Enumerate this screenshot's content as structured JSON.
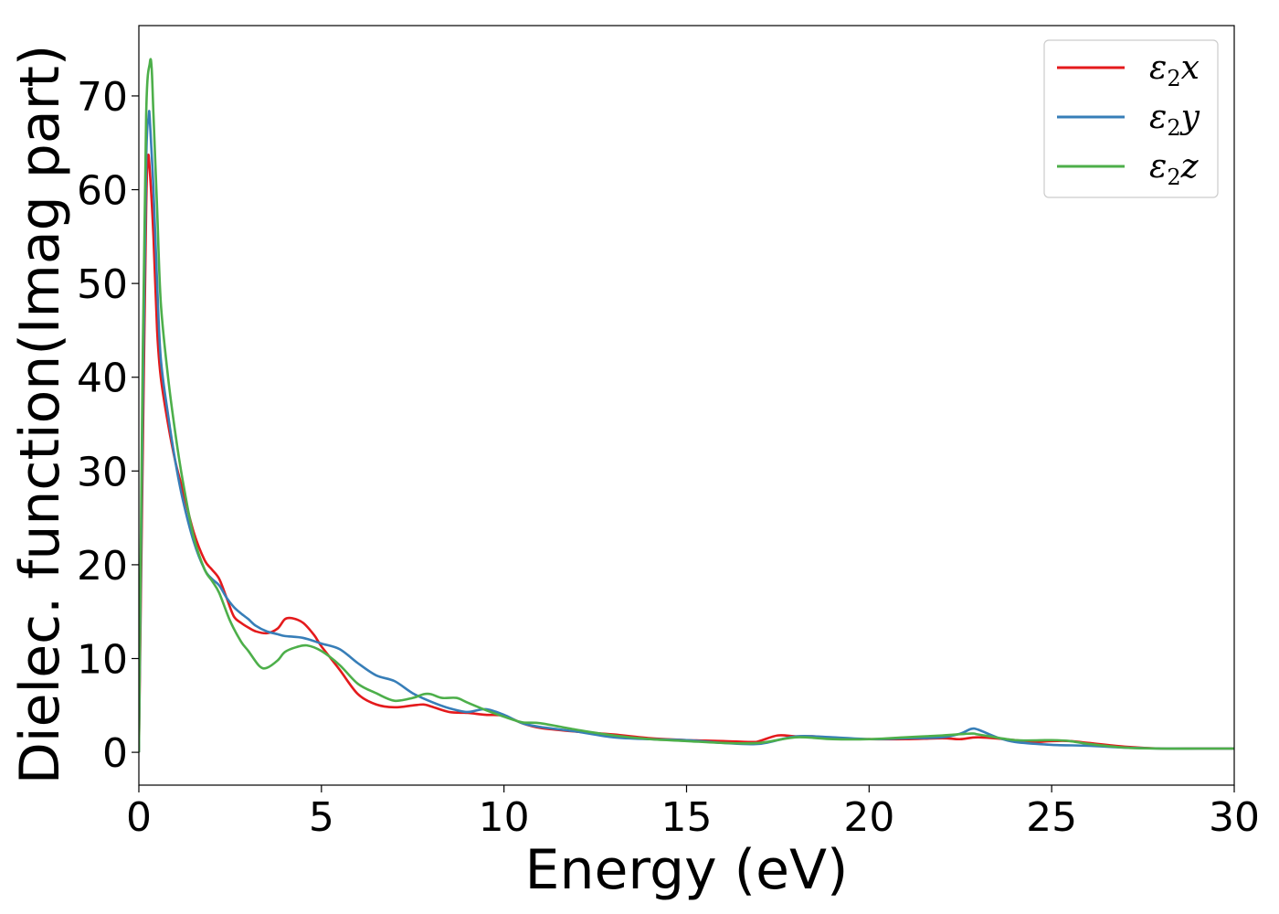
{
  "chart_data": {
    "type": "line",
    "title": "",
    "xlabel": "Energy (eV)",
    "ylabel": "Dielec. function(Imag part)",
    "xlim": [
      0,
      30
    ],
    "ylim": [
      -3.5,
      77.5
    ],
    "xticks": [
      0,
      5,
      10,
      15,
      20,
      25,
      30
    ],
    "yticks": [
      0,
      10,
      20,
      30,
      40,
      50,
      60,
      70
    ],
    "grid": false,
    "legend_position": "top-right",
    "series": [
      {
        "name": "ε₂x",
        "legend": {
          "base": "ε",
          "sub": "2",
          "comp": "x"
        },
        "color": "#e41a1c",
        "x": [
          0,
          0.1,
          0.2,
          0.25,
          0.3,
          0.4,
          0.5,
          0.6,
          0.8,
          1.0,
          1.2,
          1.5,
          1.8,
          2.0,
          2.2,
          2.4,
          2.6,
          2.8,
          3.0,
          3.2,
          3.5,
          3.8,
          4.0,
          4.2,
          4.5,
          4.8,
          5.0,
          5.5,
          6.0,
          6.5,
          7.0,
          7.5,
          7.8,
          8.0,
          8.5,
          9.0,
          9.5,
          10.0,
          10.5,
          11.0,
          12.0,
          13.0,
          14.0,
          15.0,
          16.0,
          16.8,
          17.0,
          17.5,
          18.0,
          18.5,
          19.0,
          20.0,
          21.0,
          22.0,
          22.5,
          23.0,
          24.0,
          24.5,
          25.0,
          25.5,
          26.0,
          27.0,
          28.0,
          29.0,
          30.0
        ],
        "y": [
          0,
          30,
          58,
          63.5,
          62,
          55,
          45,
          40,
          35,
          31,
          28,
          23.5,
          20.5,
          19.5,
          18.5,
          16.5,
          14.5,
          13.8,
          13.3,
          12.9,
          12.7,
          13.2,
          14.2,
          14.3,
          13.8,
          12.5,
          11.3,
          8.8,
          6.2,
          5.1,
          4.8,
          5.0,
          5.1,
          4.9,
          4.3,
          4.2,
          4.0,
          3.9,
          3.1,
          2.6,
          2.2,
          1.9,
          1.5,
          1.3,
          1.2,
          1.1,
          1.2,
          1.8,
          1.7,
          1.7,
          1.5,
          1.4,
          1.4,
          1.5,
          1.4,
          1.6,
          1.3,
          1.1,
          1.2,
          1.2,
          1.0,
          0.6,
          0.4,
          0.4,
          0.4
        ]
      },
      {
        "name": "ε₂y",
        "legend": {
          "base": "ε",
          "sub": "2",
          "comp": "y"
        },
        "color": "#377eb8",
        "x": [
          0,
          0.1,
          0.2,
          0.27,
          0.3,
          0.4,
          0.5,
          0.6,
          0.8,
          1.0,
          1.2,
          1.5,
          1.8,
          2.0,
          2.2,
          2.4,
          2.6,
          2.8,
          3.0,
          3.2,
          3.5,
          3.8,
          4.0,
          4.5,
          5.0,
          5.5,
          6.0,
          6.5,
          7.0,
          7.5,
          8.0,
          8.5,
          9.0,
          9.5,
          10.0,
          10.5,
          11.0,
          12.0,
          13.0,
          14.0,
          15.0,
          16.0,
          17.0,
          18.0,
          19.0,
          20.0,
          21.0,
          22.0,
          22.5,
          22.8,
          23.0,
          23.5,
          24.0,
          25.0,
          26.0,
          27.0,
          28.0,
          29.0,
          30.0
        ],
        "y": [
          0,
          35,
          63,
          67.8,
          67.5,
          60,
          50,
          42,
          36,
          31,
          27,
          22.5,
          19.5,
          18.5,
          17.8,
          16.5,
          15.5,
          14.8,
          14.2,
          13.5,
          12.9,
          12.6,
          12.4,
          12.2,
          11.6,
          11.0,
          9.5,
          8.2,
          7.6,
          6.3,
          5.4,
          4.7,
          4.3,
          4.6,
          4.0,
          3.1,
          2.7,
          2.2,
          1.6,
          1.4,
          1.3,
          1.0,
          0.9,
          1.7,
          1.6,
          1.4,
          1.5,
          1.6,
          2.0,
          2.5,
          2.4,
          1.6,
          1.1,
          0.8,
          0.7,
          0.5,
          0.4,
          0.4,
          0.4
        ]
      },
      {
        "name": "ε₂z",
        "legend": {
          "base": "ε",
          "sub": "2",
          "comp": "z"
        },
        "color": "#4daf4a",
        "x": [
          0,
          0.1,
          0.2,
          0.3,
          0.35,
          0.4,
          0.5,
          0.6,
          0.8,
          1.0,
          1.2,
          1.5,
          1.8,
          2.0,
          2.2,
          2.5,
          2.8,
          3.0,
          3.3,
          3.5,
          3.8,
          4.0,
          4.3,
          4.6,
          5.0,
          5.5,
          6.0,
          6.5,
          7.0,
          7.5,
          7.8,
          8.0,
          8.3,
          8.7,
          9.0,
          9.5,
          10.0,
          10.5,
          11.0,
          12.0,
          13.0,
          14.0,
          15.0,
          16.0,
          17.0,
          18.0,
          19.0,
          20.0,
          21.0,
          22.0,
          22.8,
          23.0,
          24.0,
          25.0,
          25.5,
          26.0,
          27.0,
          28.0,
          29.0,
          30.0
        ],
        "y": [
          0,
          40,
          68,
          73.5,
          73.0,
          68,
          58,
          48,
          40,
          34,
          29,
          23,
          19.5,
          18.3,
          17.0,
          14.0,
          11.8,
          10.8,
          9.2,
          9.0,
          9.8,
          10.7,
          11.2,
          11.4,
          10.8,
          9.3,
          7.3,
          6.3,
          5.5,
          5.8,
          6.2,
          6.2,
          5.8,
          5.8,
          5.3,
          4.5,
          3.8,
          3.2,
          3.1,
          2.4,
          1.8,
          1.4,
          1.2,
          1.0,
          1.0,
          1.6,
          1.4,
          1.4,
          1.6,
          1.8,
          2.0,
          1.9,
          1.3,
          1.3,
          1.2,
          0.9,
          0.5,
          0.4,
          0.4,
          0.4
        ]
      }
    ]
  }
}
